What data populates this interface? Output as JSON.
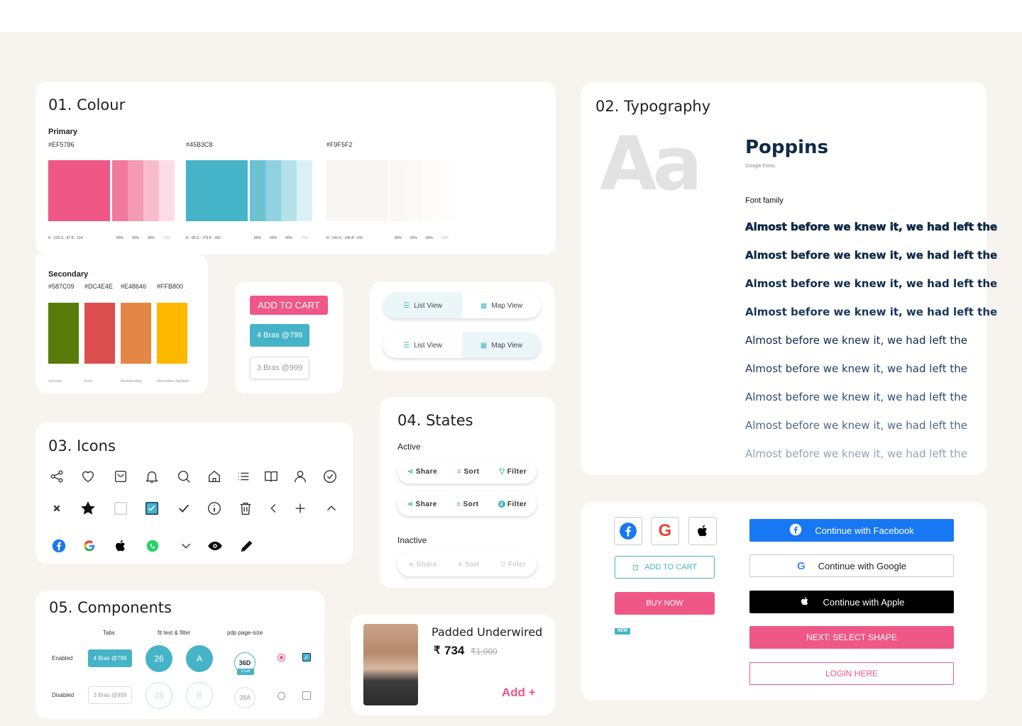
{
  "colour": {
    "title": "01. Colour",
    "primary_label": "Primary",
    "primary": [
      {
        "hex": "#EF5786",
        "color": "#EF5786",
        "rgb": "R : 239  G : 87  B : 134",
        "tints": [
          "80%",
          "60%",
          "40%",
          "20%"
        ]
      },
      {
        "hex": "#45B3C8",
        "color": "#45B3C8",
        "rgb": "R : 69  G : 179  B : 200",
        "tints": [
          "80%",
          "60%",
          "40%",
          "20%"
        ]
      },
      {
        "hex": "#F9F5F2",
        "color": "#F9F5F2",
        "rgb": "R : 249  G : 245  B : 242",
        "tints": [
          "80%",
          "60%",
          "40%",
          "20%"
        ]
      }
    ],
    "secondary_label": "Secondary",
    "secondary": [
      {
        "hex": "#587C09",
        "color": "#587C09",
        "name": "Success"
      },
      {
        "hex": "#DC4E4E",
        "color": "#DC4E4E",
        "name": "Error"
      },
      {
        "hex": "#E48646",
        "color": "#E48646",
        "name": "Alert/pending"
      },
      {
        "hex": "#FFB800",
        "color": "#FFB800",
        "name": "Information highlight"
      }
    ]
  },
  "buttons": {
    "add_to_cart": "ADD TO CART",
    "bras_active": "4 Bras @799",
    "bras_inactive": "3 Bras @999"
  },
  "toggle": {
    "list": "List View",
    "map": "Map View"
  },
  "typography": {
    "title": "02. Typography",
    "sample": "Aa",
    "font_name": "Poppins",
    "source": "Google Fonts",
    "family_label": "Font family",
    "sample_text": "Almost before we knew it, we had left the"
  },
  "icons": {
    "title": "03. Icons",
    "row1": [
      "share-icon",
      "heart-icon",
      "bag-icon",
      "bell-icon",
      "search-icon",
      "home-icon",
      "list-icon",
      "book-icon",
      "user-icon",
      "check-circle-icon"
    ],
    "row2": [
      "close-icon",
      "star-icon",
      "checkbox-empty-icon",
      "checkbox-checked-icon",
      "check-icon",
      "info-icon",
      "trash-icon",
      "chevron-left-icon",
      "plus-icon",
      "chevron-up-icon"
    ],
    "row3": [
      "facebook-icon",
      "google-icon",
      "apple-icon",
      "whatsapp-icon",
      "chevron-down-icon",
      "eye-icon",
      "pencil-icon"
    ]
  },
  "states": {
    "title": "04. States",
    "active": "Active",
    "inactive": "Inactive",
    "share": "Share",
    "sort": "Sort",
    "filter": "Filter",
    "filter_count": "2"
  },
  "components": {
    "title": "05. Components",
    "col_tabs": "Tabs",
    "col_fit": "fit test & filter",
    "col_pdp": "pdp page-size",
    "row_enabled": "Enabled",
    "row_disabled": "Disabled",
    "tab_enabled": "4 Bras @799",
    "tab_disabled": "3 Bras @999",
    "fit_enabled": "26",
    "filter_enabled": "A",
    "fit_disabled": "28",
    "filter_disabled": "B",
    "size_enabled": "36D",
    "size_left": "3 Left",
    "size_disabled": "38A"
  },
  "product": {
    "name": "Padded Underwired",
    "currency": "₹",
    "price": "734",
    "old_price": "₹1,000",
    "add": "Add +"
  },
  "cta": {
    "add_to_cart": "ADD TO CART",
    "buy_now": "BUY NOW",
    "new_badge": "NEW",
    "facebook": "Continue with Facebook",
    "google": "Continue with Google",
    "apple": "Continue with Apple",
    "next": "NEXT: SELECT SHAPE",
    "login": "LOGIN HERE"
  }
}
